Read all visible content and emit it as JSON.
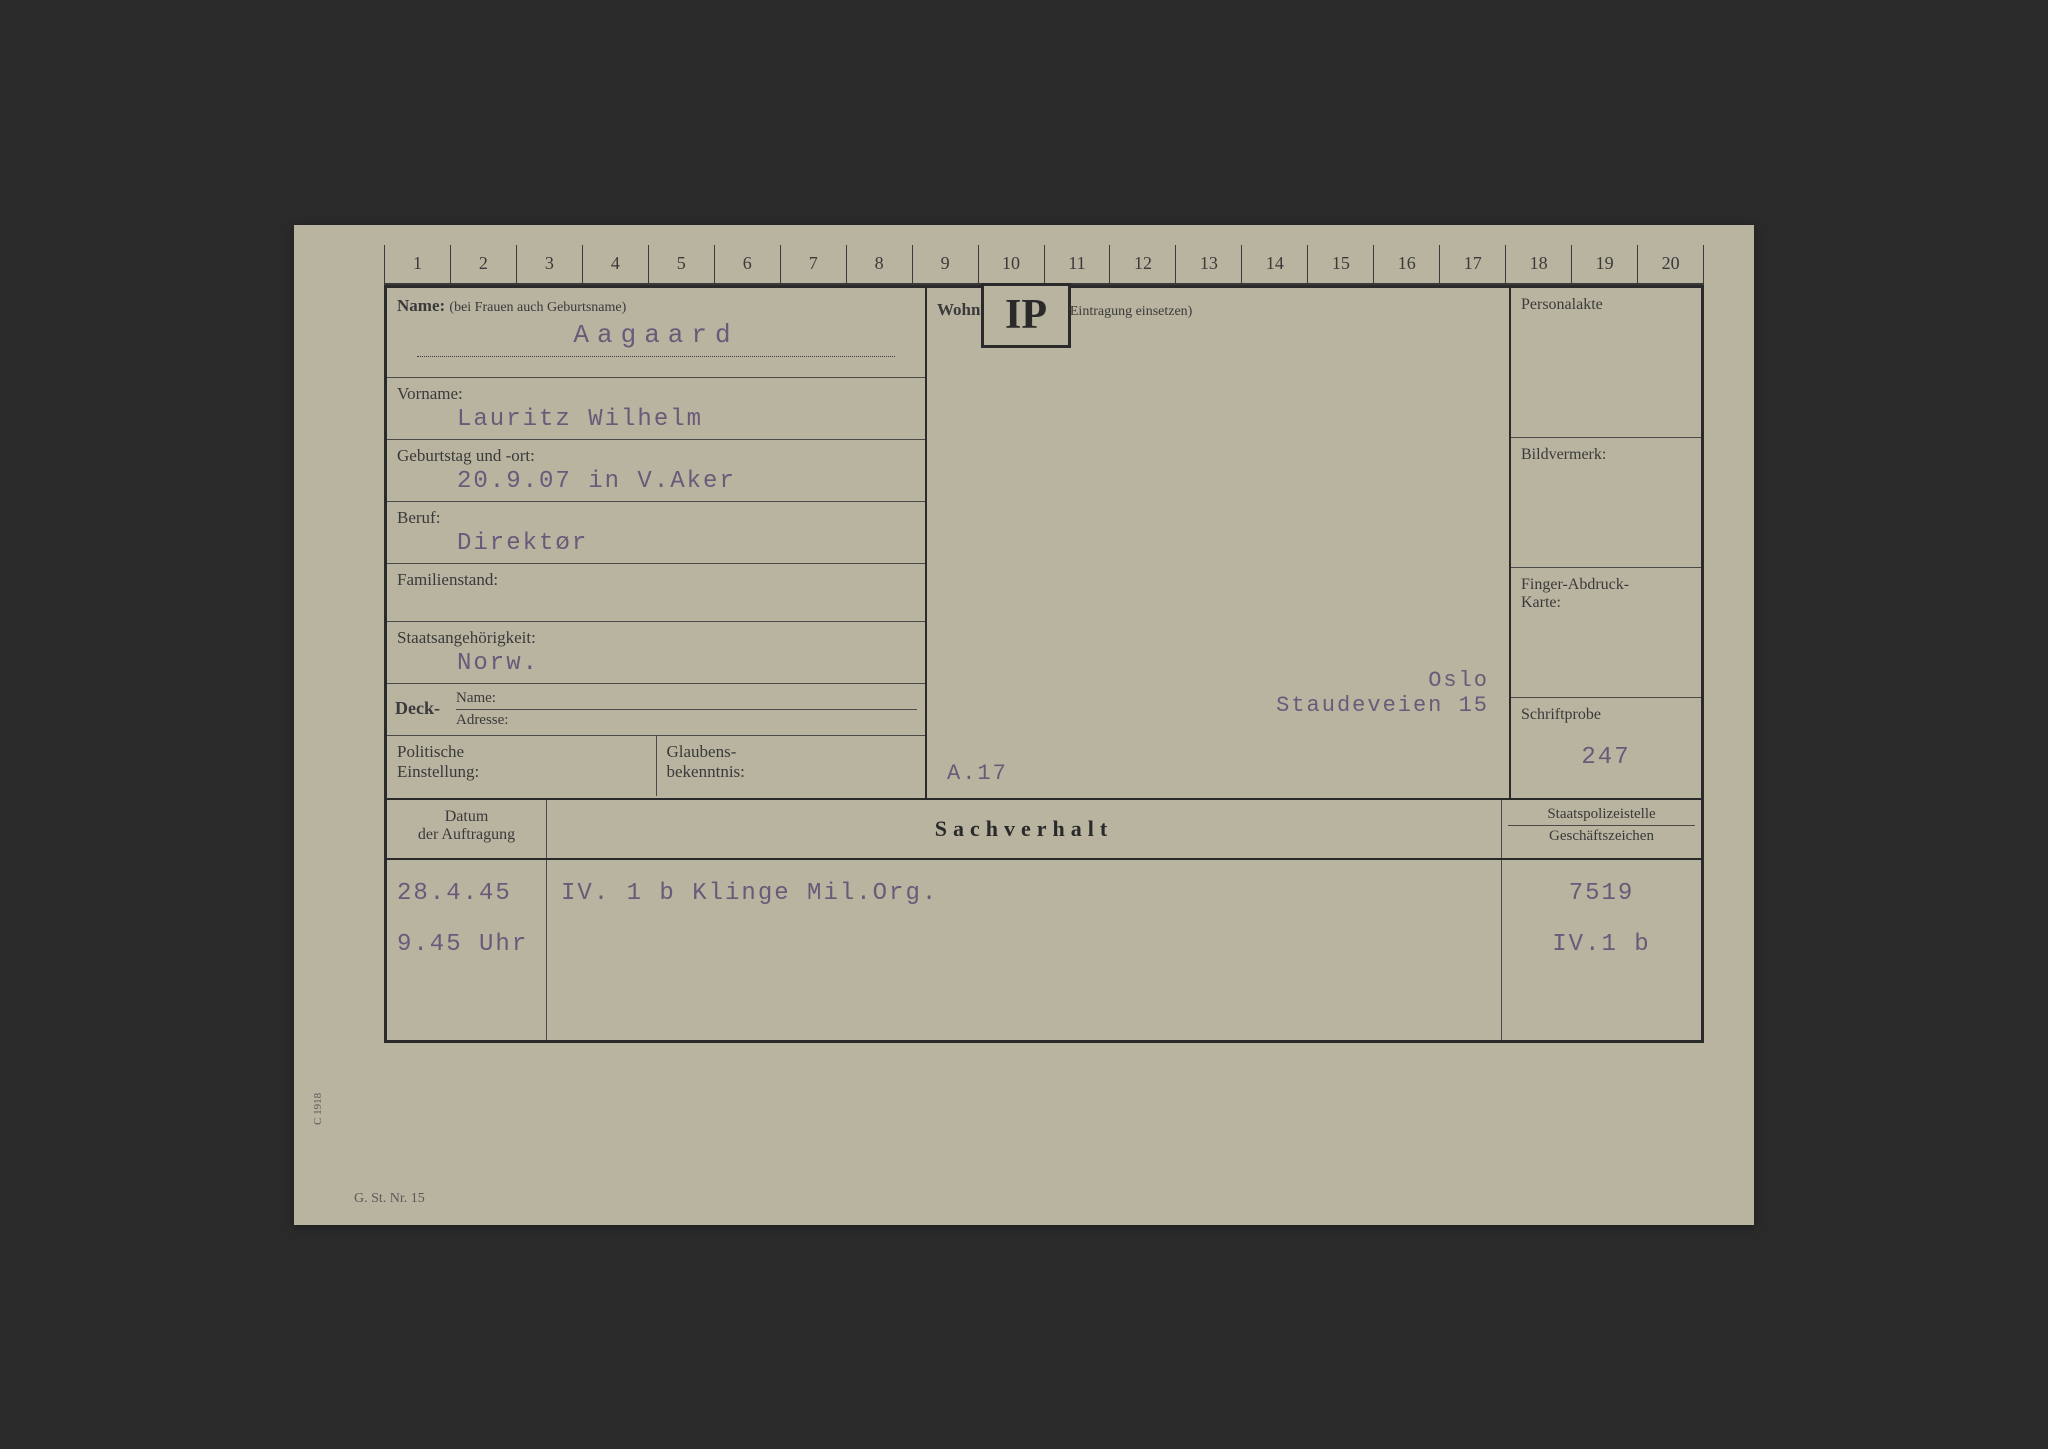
{
  "ruler": [
    "1",
    "2",
    "3",
    "4",
    "5",
    "6",
    "7",
    "8",
    "9",
    "10",
    "11",
    "12",
    "13",
    "14",
    "15",
    "16",
    "17",
    "18",
    "19",
    "20"
  ],
  "badge": "IP",
  "labels": {
    "name": "Name:",
    "name_note": "(bei Frauen auch Geburtsname)",
    "vorname": "Vorname:",
    "geburtstag": "Geburtstag und -ort:",
    "beruf": "Beruf:",
    "familienstand": "Familienstand:",
    "staats": "Staatsangehörigkeit:",
    "deck": "Deck-",
    "deck_name": "Name:",
    "deck_adresse": "Adresse:",
    "politische": "Politische\nEinstellung:",
    "glaubens": "Glaubens-\nbekenntnis:",
    "wohnung": "Wohnung:",
    "wohnung_note": "(Zeit der Eintragung einsetzen)",
    "personalakte": "Personalakte",
    "bildvermerk": "Bildvermerk:",
    "fingerabdruck": "Finger-Abdruck-\nKarte:",
    "schriftprobe": "Schriftprobe",
    "datum": "Datum\nder Auftragung",
    "sachverhalt": "Sachverhalt",
    "staatspolizei": "Staatspolizeistelle",
    "geschaeftszeichen": "Geschäftszeichen",
    "form_number": "G. St. Nr. 15",
    "side_code": "C 1918"
  },
  "values": {
    "name": "Aagaard",
    "vorname": "Lauritz Wilhelm",
    "geburtstag": "20.9.07 in V.Aker",
    "beruf": "Direktør",
    "familienstand": "",
    "staats": "Norw.",
    "wohnung_city": "Oslo",
    "wohnung_street": "Staudeveien 15",
    "wohnung_code": "A.17",
    "schriftprobe": "247",
    "datum_1": "28.4.45",
    "datum_2": "9.45 Uhr",
    "sach_1": "IV. 1 b  Klinge  Mil.Org.",
    "ref_1": "7519",
    "ref_2": "IV.1 b"
  },
  "colors": {
    "card_bg": "#b8b4a0",
    "ink": "#2a2a2a",
    "typed": "#6a5a7a",
    "page_bg": "#2a2a2a"
  }
}
